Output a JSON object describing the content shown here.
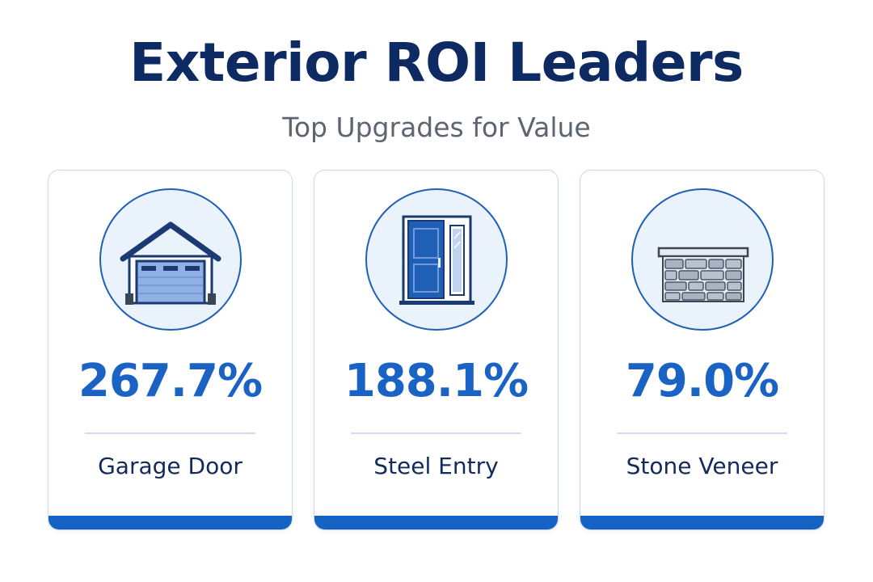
{
  "header": {
    "title": "Exterior ROI Leaders",
    "subtitle": "Top Upgrades for Value"
  },
  "cards": [
    {
      "icon": "garage-door-icon",
      "value": "267.7%",
      "label": "Garage Door"
    },
    {
      "icon": "steel-entry-door-icon",
      "value": "188.1%",
      "label": "Steel Entry"
    },
    {
      "icon": "stone-veneer-icon",
      "value": "79.0%",
      "label": "Stone Veneer"
    }
  ],
  "colors": {
    "title": "#0d2a63",
    "accent": "#1a63c4",
    "bar": "#1462c4",
    "card_border": "#c9daf0",
    "icon_bg": "#eaf2fc"
  }
}
